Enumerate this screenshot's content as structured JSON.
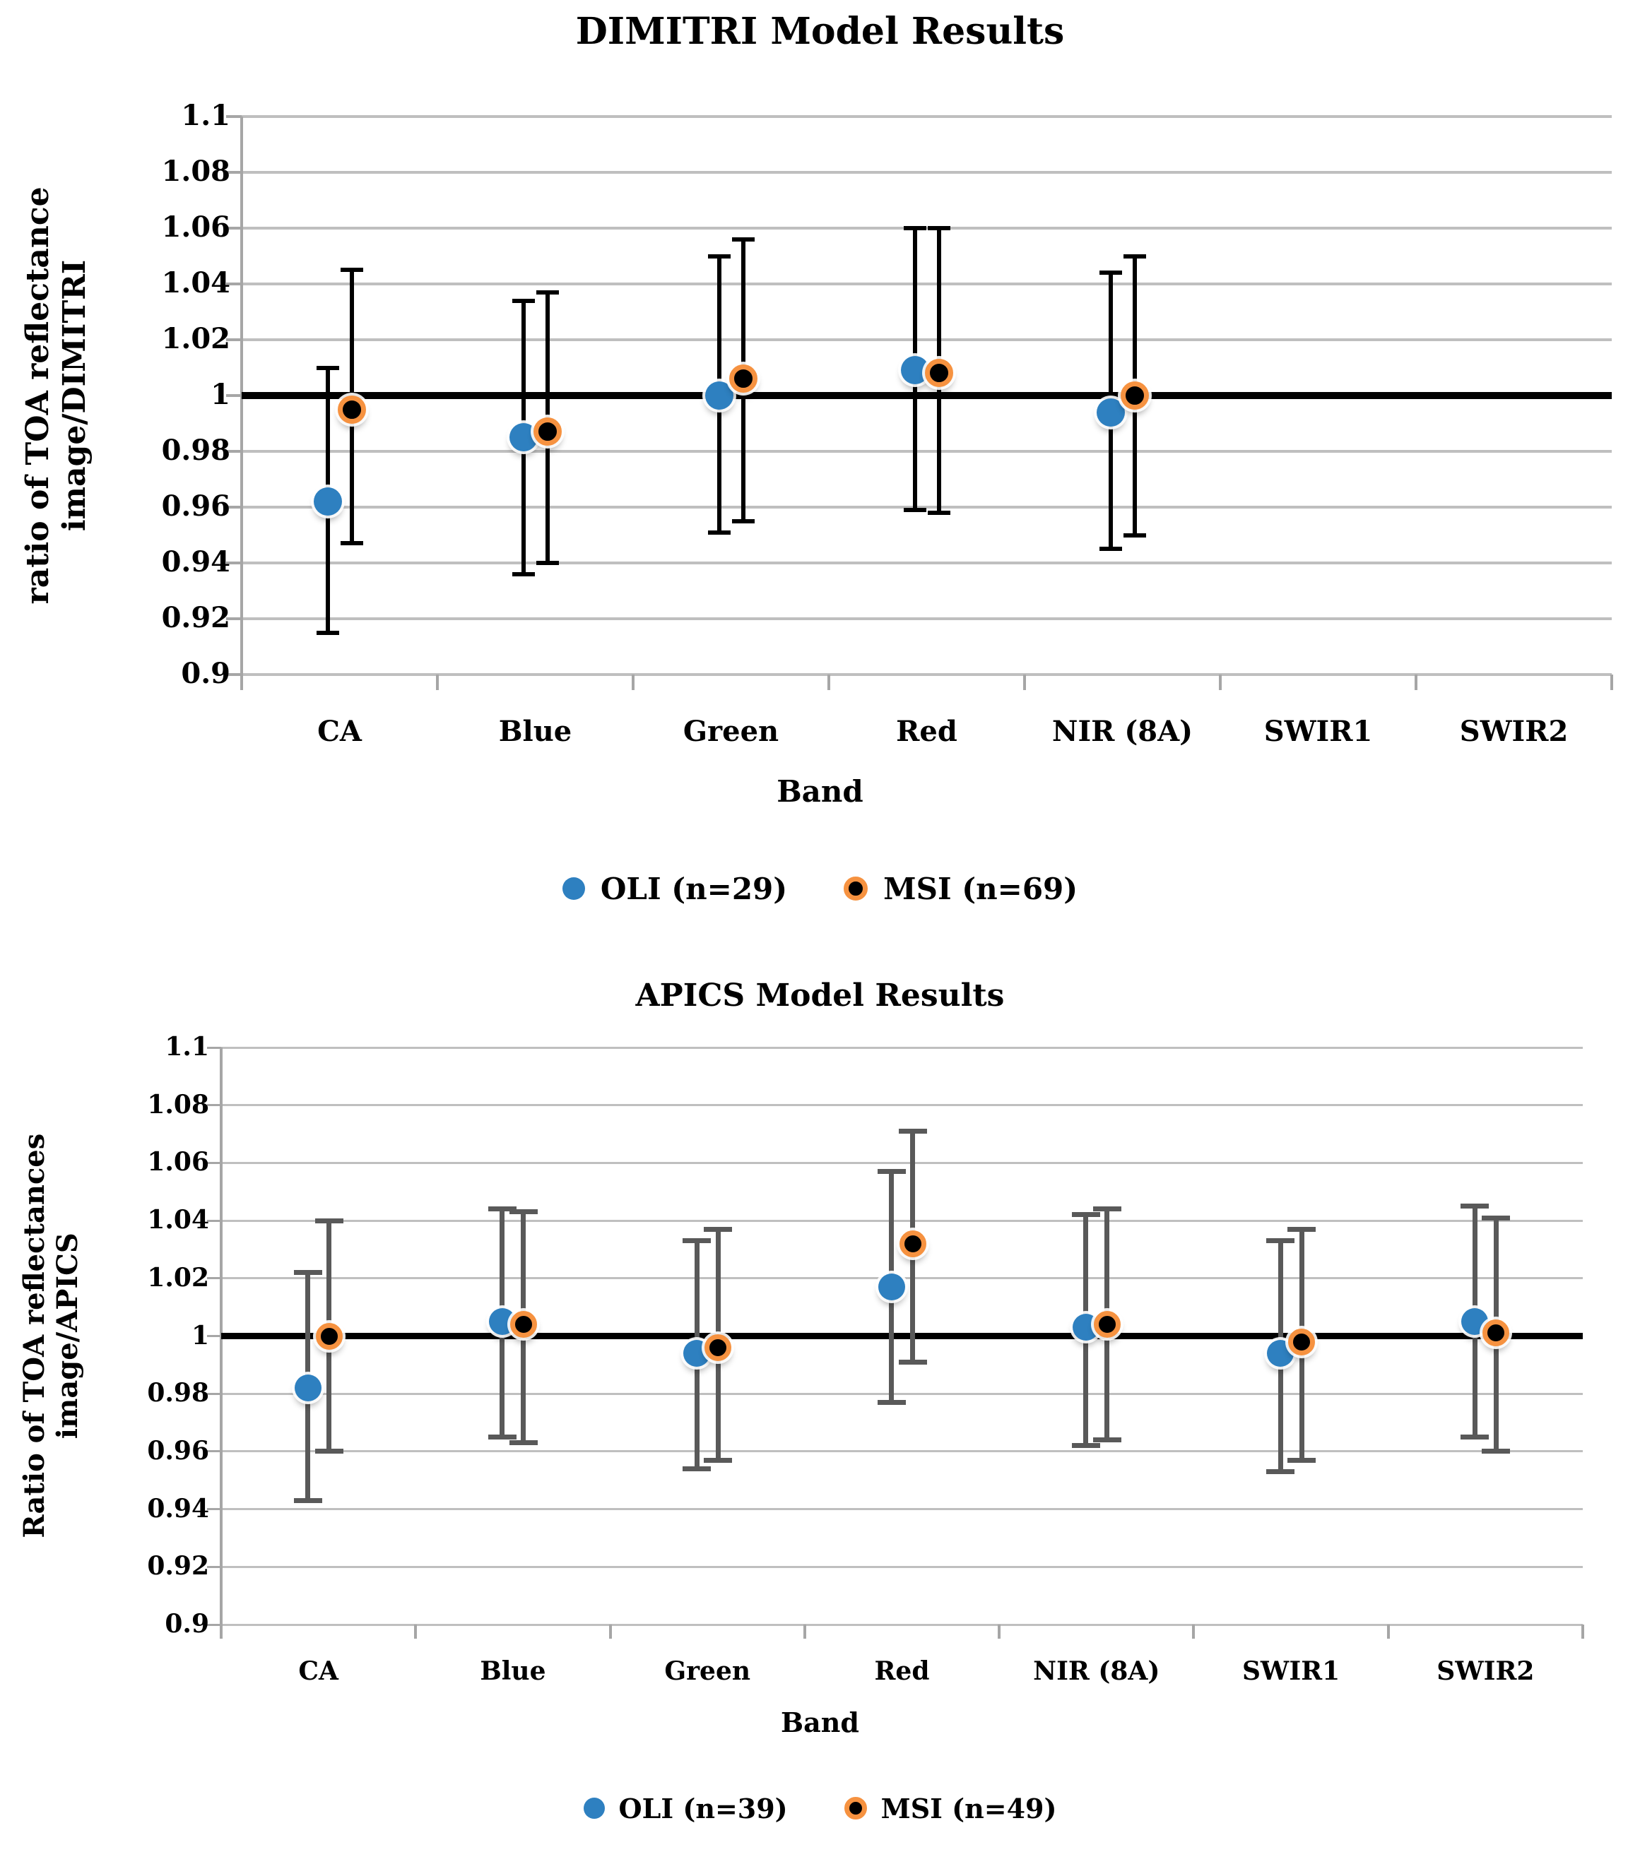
{
  "chart_data": [
    {
      "type": "scatter",
      "title": "DIMITRI Model Results",
      "ylabel_lines": [
        "ratio of TOA reflectance",
        "image/DIMITRI"
      ],
      "xlabel": "Band",
      "categories": [
        "CA",
        "Blue",
        "Green",
        "Red",
        "NIR (8A)",
        "SWIR1",
        "SWIR2"
      ],
      "ylim": [
        0.9,
        1.1
      ],
      "ytick_labels": [
        "1.1",
        "1.08",
        "1.06",
        "1.04",
        "1.02",
        "1",
        "0.98",
        "0.96",
        "0.94",
        "0.92",
        "0.9"
      ],
      "grid": true,
      "reference_line_y": 1.0,
      "legend_position": "bottom",
      "legend": [
        {
          "label": "OLI (n=29)",
          "marker": "blue-circle"
        },
        {
          "label": "MSI (n=69)",
          "marker": "black-circle-orange-ring"
        }
      ],
      "series": [
        {
          "name": "OLI",
          "marker": "blue-circle",
          "values": [
            0.962,
            0.985,
            1.0,
            1.009,
            0.994,
            null,
            null
          ],
          "err_low": [
            0.915,
            0.936,
            0.951,
            0.959,
            0.945,
            null,
            null
          ],
          "err_high": [
            1.01,
            1.034,
            1.05,
            1.06,
            1.044,
            null,
            null
          ]
        },
        {
          "name": "MSI",
          "marker": "black-circle-orange-ring",
          "values": [
            0.995,
            0.987,
            1.006,
            1.008,
            1.0,
            null,
            null
          ],
          "err_low": [
            0.947,
            0.94,
            0.955,
            0.958,
            0.95,
            null,
            null
          ],
          "err_high": [
            1.045,
            1.037,
            1.056,
            1.06,
            1.05,
            null,
            null
          ]
        }
      ],
      "colors": {
        "oli": "#2e80c0",
        "msi_fill": "#000000",
        "msi_ring": "#f69240",
        "error_bar": "#000000",
        "grid": "#bfbfbf",
        "axis": "#a6a6a6",
        "reference_line": "#000000"
      }
    },
    {
      "type": "scatter",
      "title": "APICS Model Results",
      "ylabel_lines": [
        "Ratio of TOA reflectances",
        "image/APICS"
      ],
      "xlabel": "Band",
      "categories": [
        "CA",
        "Blue",
        "Green",
        "Red",
        "NIR (8A)",
        "SWIR1",
        "SWIR2"
      ],
      "ylim": [
        0.9,
        1.1
      ],
      "ytick_labels": [
        "1.1",
        "1.08",
        "1.06",
        "1.04",
        "1.02",
        "1",
        "0.98",
        "0.96",
        "0.94",
        "0.92",
        "0.9"
      ],
      "grid": true,
      "reference_line_y": 1.0,
      "legend_position": "bottom",
      "legend": [
        {
          "label": "OLI (n=39)",
          "marker": "blue-circle"
        },
        {
          "label": "MSI (n=49)",
          "marker": "black-circle-orange-ring"
        }
      ],
      "series": [
        {
          "name": "OLI",
          "marker": "blue-circle",
          "values": [
            0.982,
            1.005,
            0.994,
            1.017,
            1.003,
            0.994,
            1.005
          ],
          "err_low": [
            0.943,
            0.965,
            0.954,
            0.977,
            0.962,
            0.953,
            0.965
          ],
          "err_high": [
            1.022,
            1.044,
            1.033,
            1.057,
            1.042,
            1.033,
            1.045
          ]
        },
        {
          "name": "MSI",
          "marker": "black-circle-orange-ring",
          "values": [
            1.0,
            1.004,
            0.996,
            1.032,
            1.004,
            0.998,
            1.001
          ],
          "err_low": [
            0.96,
            0.963,
            0.957,
            0.991,
            0.964,
            0.957,
            0.96
          ],
          "err_high": [
            1.04,
            1.043,
            1.037,
            1.071,
            1.044,
            1.037,
            1.041
          ]
        }
      ],
      "colors": {
        "oli": "#2e80c0",
        "msi_fill": "#000000",
        "msi_ring": "#f69240",
        "error_bar": "#595959",
        "grid": "#bfbfbf",
        "axis": "#a6a6a6",
        "reference_line": "#000000"
      }
    }
  ]
}
